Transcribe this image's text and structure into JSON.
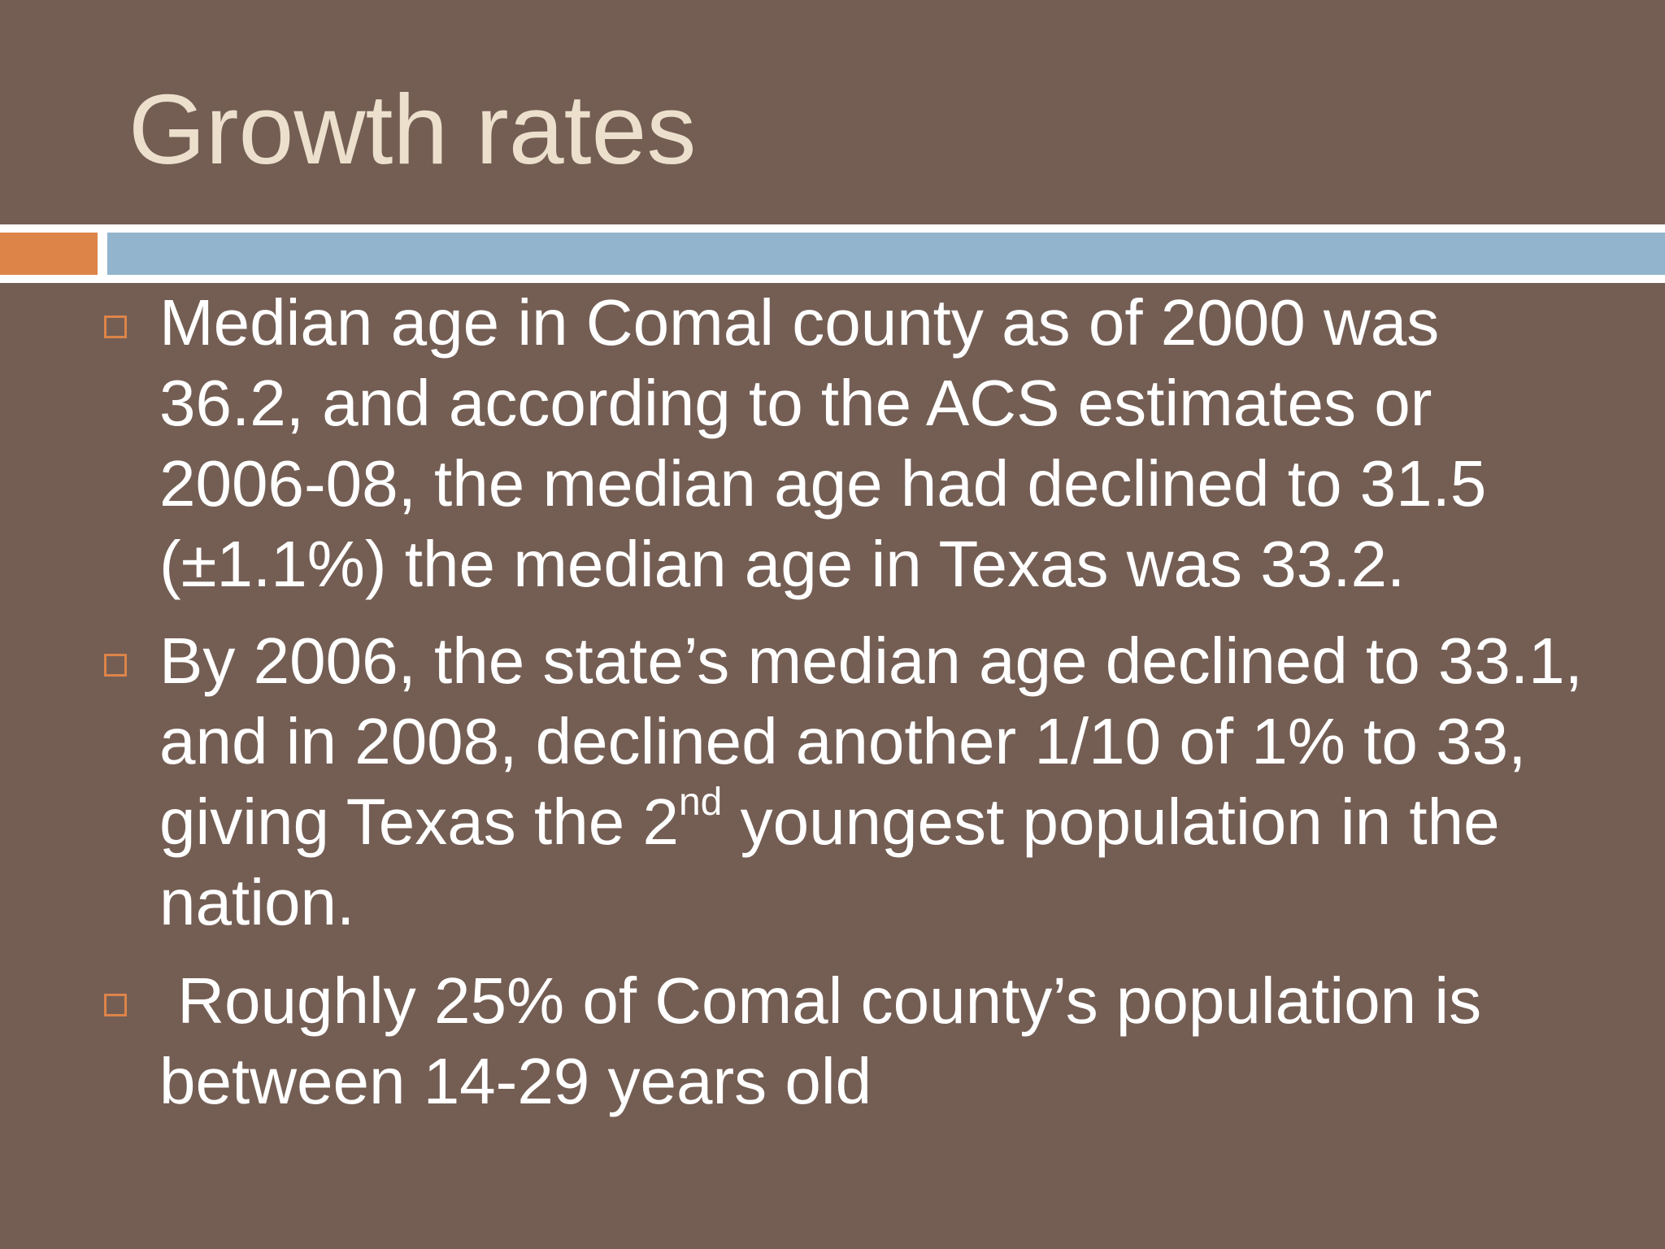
{
  "slide": {
    "title": "Growth rates",
    "colors": {
      "background": "#745e54",
      "title": "#ece0cc",
      "accent_orange": "#dd8449",
      "accent_blue": "#92b5cd",
      "body_text": "#ffffff"
    },
    "bullets": [
      {
        "marker_icon": "square-outline-bullet-icon",
        "text": "Median age in Comal county as of 2000 was 36.2, and according to the ACS estimates or 2006-08, the median age had declined to 31.5 (±1.1%) the median age in Texas was 33.2."
      },
      {
        "marker_icon": "square-outline-bullet-icon",
        "text_before_sup": "By 2006, the state’s median age declined to 33.1, and in 2008, declined another 1/10 of 1% to 33, giving Texas the 2",
        "sup": "nd",
        "text_after_sup": " youngest population in the nation."
      },
      {
        "marker_icon": "square-outline-bullet-icon",
        "text": " Roughly 25% of Comal county’s population is between 14-29 years old"
      }
    ]
  }
}
